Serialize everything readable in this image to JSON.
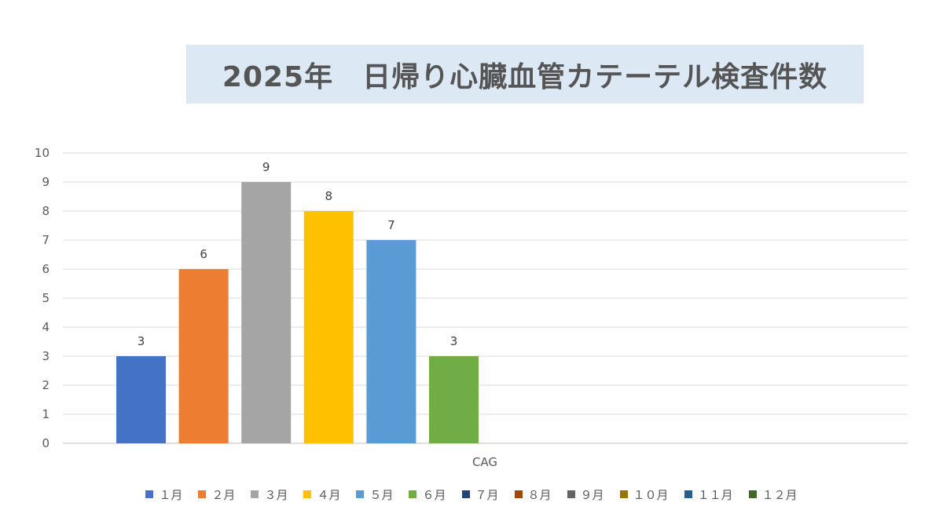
{
  "chart_data": {
    "type": "bar",
    "title": "2025年　日帰り心臓血管カテーテル検査件数",
    "categories": [
      "CAG"
    ],
    "series": [
      {
        "name": "１月",
        "values": [
          3
        ],
        "color": "#4472c4"
      },
      {
        "name": "２月",
        "values": [
          6
        ],
        "color": "#ed7d31"
      },
      {
        "name": "３月",
        "values": [
          9
        ],
        "color": "#a5a5a5"
      },
      {
        "name": "４月",
        "values": [
          8
        ],
        "color": "#ffc000"
      },
      {
        "name": "５月",
        "values": [
          7
        ],
        "color": "#5b9bd5"
      },
      {
        "name": "６月",
        "values": [
          3
        ],
        "color": "#70ad47"
      },
      {
        "name": "７月",
        "values": [
          null
        ],
        "color": "#264478"
      },
      {
        "name": "８月",
        "values": [
          null
        ],
        "color": "#9e480e"
      },
      {
        "name": "９月",
        "values": [
          null
        ],
        "color": "#636363"
      },
      {
        "name": "１０月",
        "values": [
          null
        ],
        "color": "#997300"
      },
      {
        "name": "１１月",
        "values": [
          null
        ],
        "color": "#255e91"
      },
      {
        "name": "１２月",
        "values": [
          null
        ],
        "color": "#43682b"
      }
    ],
    "ylim": [
      0,
      10
    ],
    "yticks": [
      0,
      1,
      2,
      3,
      4,
      5,
      6,
      7,
      8,
      9,
      10
    ],
    "xlabel": "",
    "ylabel": "",
    "grid": true,
    "legend_position": "bottom",
    "data_labels": true
  }
}
